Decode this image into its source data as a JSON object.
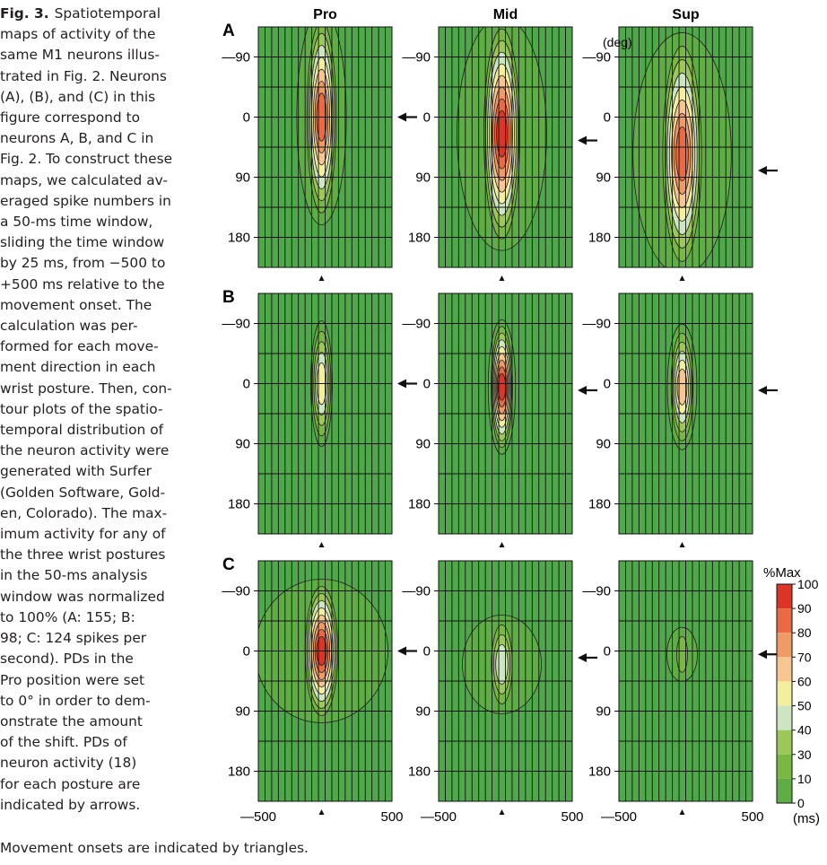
{
  "caption": {
    "fig_label": "Fig. 3.",
    "lines": [
      "Spatiotemporal",
      "maps of activity of the",
      "same M1 neurons illus-",
      "trated in Fig. 2. Neurons",
      "(A), (B), and (C) in this",
      "figure correspond to",
      "neurons A, B, and C in",
      "Fig. 2. To construct these",
      "maps, we calculated av-",
      "eraged spike numbers in",
      "a 50-ms time window,",
      "sliding the time window",
      "by 25 ms, from −500 to",
      "+500 ms relative to the",
      "movement onset. The",
      "calculation was per-",
      "formed for each move-",
      "ment direction in each",
      "wrist posture. Then, con-",
      "tour plots of the spatio-",
      "temporal distribution of",
      "the neuron activity were",
      "generated with Surfer",
      "(Golden Software, Gold-",
      "en, Colorado). The max-",
      "imum activity for any of",
      "the three wrist postures",
      "in the 50-ms analysis",
      "window was normalized",
      "to 100% (A: 155; B:",
      "98; C: 124 spikes per",
      "second). PDs in the",
      "Pro position were set",
      "to 0° in order to dem-",
      "onstrate the amount",
      "of the shift. PDs of",
      "neuron activity (18)",
      "for each posture are",
      "indicated by arrows."
    ],
    "tail": "Movement onsets are indicated by triangles."
  },
  "figure": {
    "rows": [
      "A",
      "B",
      "C"
    ],
    "columns": [
      "Pro",
      "Mid",
      "Sup"
    ],
    "y_unit": "(deg)",
    "x_unit": "(ms)",
    "colorbar_title": "%Max",
    "colorbar_ticks": [
      "100",
      "90",
      "80",
      "70",
      "60",
      "50",
      "40",
      "30",
      "10",
      "0"
    ],
    "colors": {
      "background": "#4fa84a",
      "levels": [
        "#4fa84a",
        "#5fae45",
        "#78b843",
        "#9cc858",
        "#cde6c2",
        "#f4ef9c",
        "#f7c692",
        "#f09a65",
        "#ea6b43",
        "#dc3527"
      ]
    }
  },
  "chart_data": {
    "type": "heatmap",
    "x_label": "",
    "y_label": "",
    "x_ticks": [
      -500,
      500
    ],
    "y_ticks": [
      -90,
      0,
      90,
      180
    ],
    "xlim": [
      -500,
      500
    ],
    "ylim": [
      -135,
      225
    ],
    "movement_onset_ms": 0,
    "pd_arrows_deg": {
      "A": {
        "Pro": 0,
        "Mid": 35,
        "Sup": 80
      },
      "B": {
        "Pro": 0,
        "Mid": 10,
        "Sup": 10
      },
      "C": {
        "Pro": 0,
        "Mid": 10,
        "Sup": 5
      }
    },
    "peak_activity_percent_max": {
      "A": {
        "Pro": 90,
        "Mid": 100,
        "Sup": 90
      },
      "B": {
        "Pro": 60,
        "Mid": 100,
        "Sup": 70
      },
      "C": {
        "Pro": 100,
        "Mid": 50,
        "Sup": 30
      }
    },
    "normalization_spikes_per_s": {
      "A": 155,
      "B": 98,
      "C": 124
    }
  }
}
